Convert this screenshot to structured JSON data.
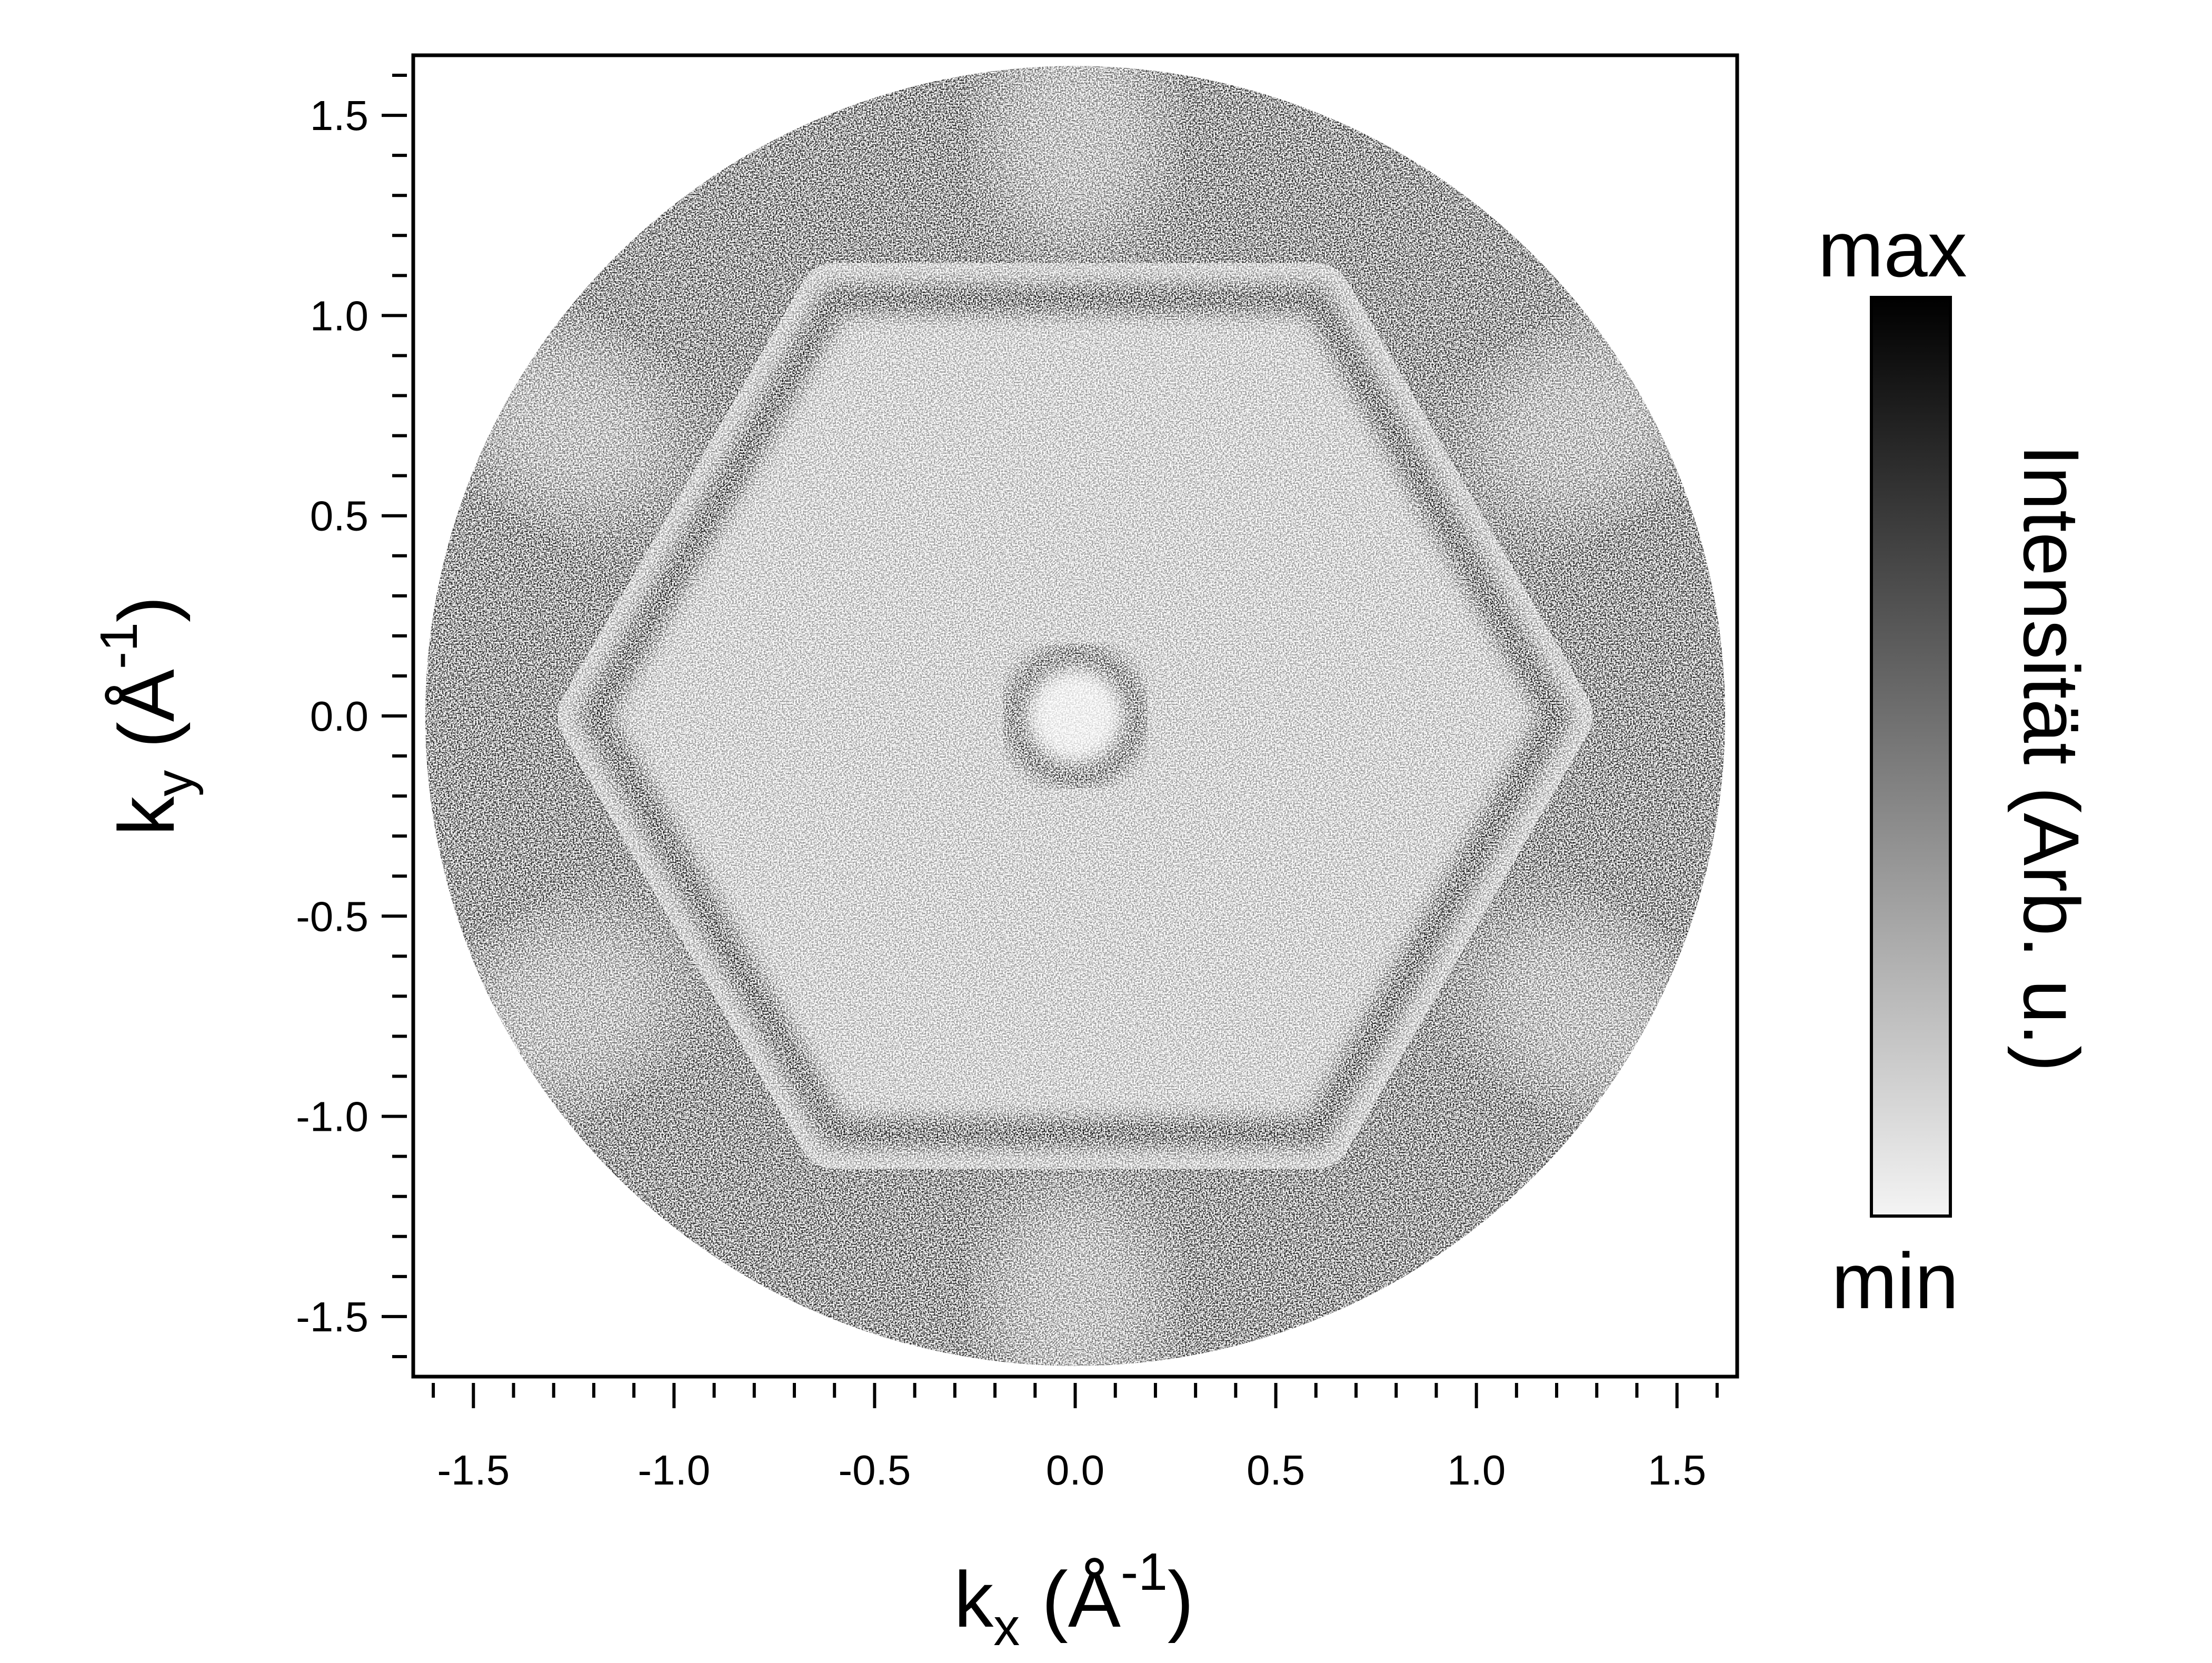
{
  "chart_data": {
    "type": "heatmap",
    "subtype": "photoemission momentum map (constant energy cut)",
    "xlabel": {
      "main": "k",
      "sub": "x",
      "open": "(",
      "unit": "Å",
      "sup": "-1",
      "close": ")"
    },
    "ylabel": {
      "main": "k",
      "sub": "y",
      "open": "(",
      "unit": "Å",
      "sup": "-1",
      "close": ")"
    },
    "xlim": [
      -1.65,
      1.65
    ],
    "ylim": [
      -1.65,
      1.65
    ],
    "x_ticks": [
      "-1.5",
      "-1.0",
      "-0.5",
      "0.0",
      "0.5",
      "1.0",
      "1.5"
    ],
    "y_ticks": [
      "1.5",
      "1.0",
      "0.5",
      "0.0",
      "-0.5",
      "-1.0",
      "-1.5"
    ],
    "x_tick_values": [
      -1.5,
      -1.0,
      -0.5,
      0.0,
      0.5,
      1.0,
      1.5
    ],
    "y_tick_values": [
      1.5,
      1.0,
      0.5,
      0.0,
      -0.5,
      -1.0,
      -1.5
    ],
    "minor_tick_step": 0.1,
    "colormap": "grayscale (white = min, black = max)",
    "colorbar": {
      "label": "Intensität (Arb. u.)",
      "max_label": "max",
      "min_label": "min"
    },
    "data_region": {
      "shape": "disk",
      "center": [
        0.0,
        0.0
      ],
      "radius": 1.62
    },
    "features": [
      {
        "type": "ring",
        "center": [
          0.0,
          0.0
        ],
        "radius": 0.15,
        "intensity": "high"
      },
      {
        "type": "hexagonal contour",
        "center": [
          0.0,
          0.0
        ],
        "radius": 1.2,
        "intensity": "high"
      },
      {
        "type": "outer dark patches",
        "symmetry": "six-fold",
        "radius": 1.45,
        "intensity": "medium"
      }
    ]
  },
  "colors": {
    "background": "#ffffff",
    "max": "#000000",
    "min": "#ffffff",
    "frame": "#000000"
  }
}
